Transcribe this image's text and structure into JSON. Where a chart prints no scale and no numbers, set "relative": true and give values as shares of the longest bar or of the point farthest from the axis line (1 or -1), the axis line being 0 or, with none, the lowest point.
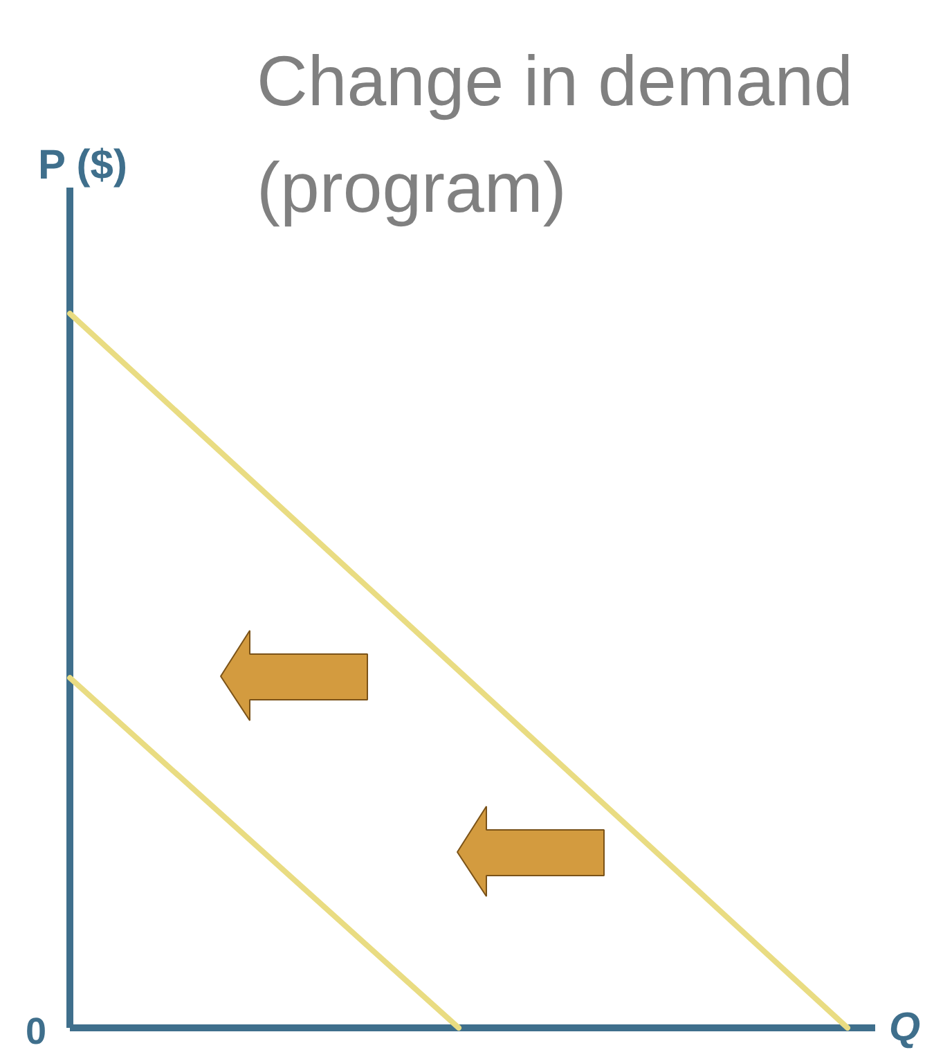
{
  "chart_data": {
    "type": "line",
    "title": "Change in demand (program)",
    "xlabel": "Q",
    "ylabel": "P ($)",
    "relative": true,
    "line_style": "solid",
    "categories": [
      null,
      null,
      null
    ],
    "series": [
      {
        "color": "#e9dc82",
        "values": [
          1,
          0.5,
          0
        ]
      },
      {
        "color": "#e9dc82",
        "values": [
          0.49,
          0,
          null
        ]
      }
    ],
    "annotations": [
      "0"
    ]
  }
}
